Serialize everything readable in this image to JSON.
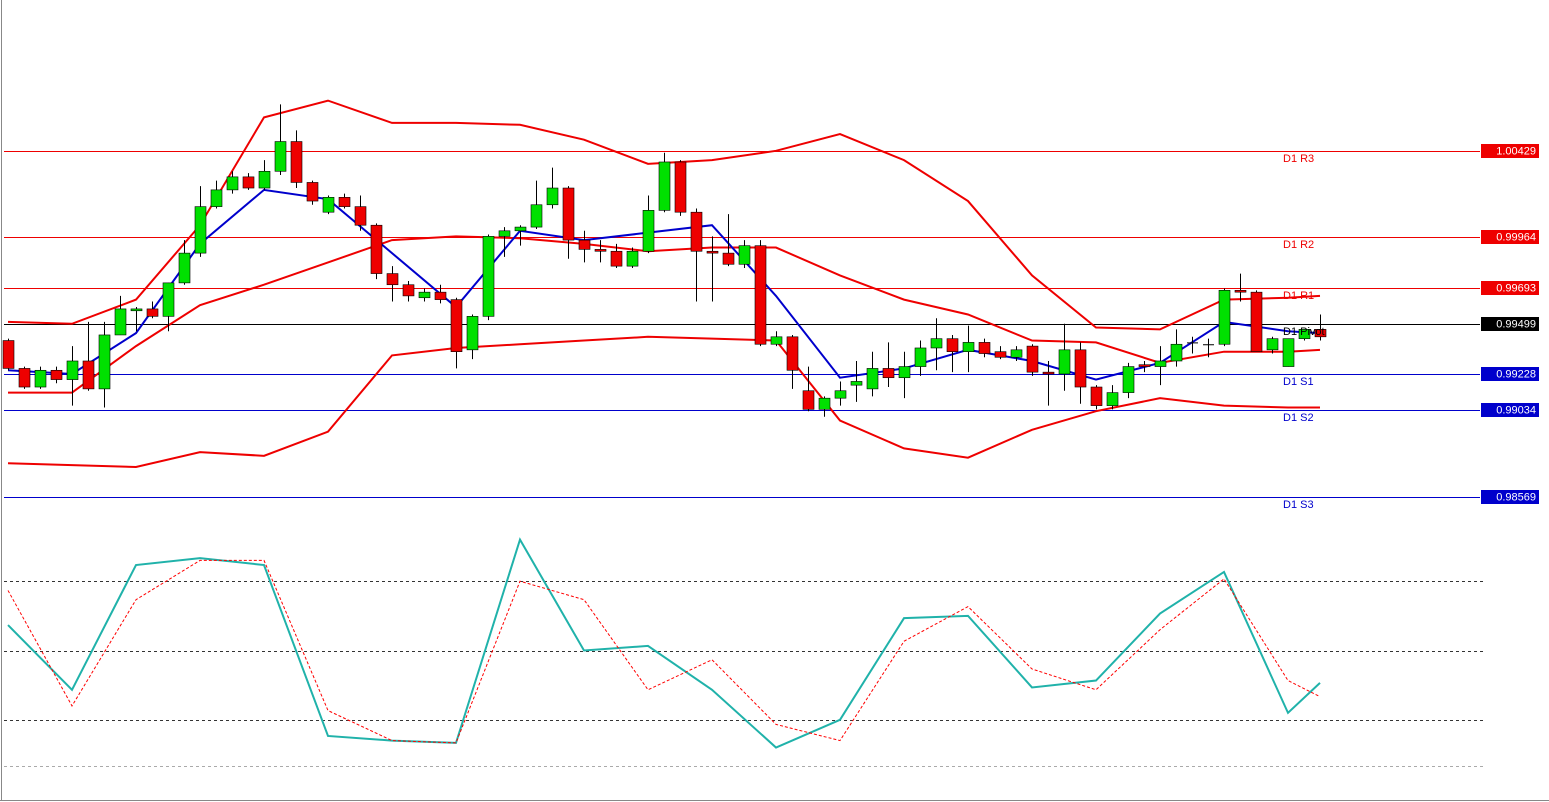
{
  "chart_data": [
    {
      "type": "candlestick",
      "xlim": [
        -0.5,
        92
      ],
      "ylim": [
        0.98445,
        1.01241
      ],
      "up_color": "#00e000",
      "down_color": "#ee0000",
      "open": [
        0.9941,
        0.9926,
        0.9916,
        0.9925,
        0.992,
        0.993,
        0.9915,
        0.9944,
        0.9957,
        0.9958,
        0.9954,
        0.9972,
        0.9988,
        1.0013,
        1.0022,
        1.0029,
        1.0023,
        1.0032,
        1.0048,
        1.0026,
        1.001,
        1.0018,
        1.0013,
        1.0003,
        0.9977,
        0.9971,
        0.9964,
        0.9967,
        0.9963,
        0.9936,
        0.9954,
        0.9997,
        1.0,
        1.0002,
        1.0014,
        1.0023,
        0.9995,
        0.999,
        0.9989,
        0.9981,
        0.9989,
        1.0011,
        1.0037,
        1.001,
        0.9989,
        0.9988,
        0.9982,
        0.9992,
        0.9939,
        0.9943,
        0.9914,
        0.9904,
        0.991,
        0.9917,
        0.9915,
        0.9926,
        0.9921,
        0.9927,
        0.9937,
        0.9942,
        0.9935,
        0.994,
        0.9935,
        0.9932,
        0.9938,
        0.9924,
        0.9923,
        0.9936,
        0.9916,
        0.9906,
        0.9913,
        0.9928,
        0.9927,
        0.993,
        0.994,
        0.9939,
        0.9939,
        0.9968,
        0.9967,
        0.9936,
        0.9927,
        0.9942,
        0.9947
      ],
      "high": [
        0.9942,
        0.9927,
        0.9927,
        0.9927,
        0.9938,
        0.9951,
        0.9951,
        0.9965,
        0.9959,
        0.9962,
        0.9972,
        0.9995,
        1.0024,
        1.0027,
        1.0032,
        1.0031,
        1.0038,
        1.0068,
        1.0054,
        1.0027,
        1.0019,
        1.002,
        1.0019,
        1.0004,
        0.9981,
        0.9973,
        0.9969,
        0.9971,
        0.9964,
        0.9955,
        0.9998,
        1.0002,
        1.0003,
        1.0027,
        1.0034,
        1.0024,
        1.0,
        0.9995,
        0.9993,
        0.9991,
        1.0019,
        1.0042,
        1.0038,
        1.0012,
        0.9997,
        1.0009,
        0.9995,
        0.9995,
        0.9946,
        0.9944,
        0.9927,
        0.9911,
        0.9919,
        0.993,
        0.9935,
        0.994,
        0.9935,
        0.9941,
        0.9953,
        0.9944,
        0.9949,
        0.9942,
        0.9938,
        0.9938,
        0.9939,
        0.993,
        0.995,
        0.994,
        0.9917,
        0.9917,
        0.9929,
        0.993,
        0.9938,
        0.9947,
        0.9943,
        0.9942,
        0.9969,
        0.9977,
        0.9968,
        0.9943,
        0.9942,
        0.9947,
        0.9955
      ],
      "low": [
        0.9925,
        0.9915,
        0.9915,
        0.9918,
        0.9906,
        0.9914,
        0.9905,
        0.9944,
        0.9946,
        0.9953,
        0.9946,
        0.9971,
        0.9986,
        1.0012,
        1.002,
        1.0022,
        1.0022,
        1.003,
        1.0023,
        1.0014,
        1.0009,
        1.0012,
        1.0,
        0.9974,
        0.9962,
        0.9962,
        0.9962,
        0.9961,
        0.9926,
        0.9931,
        0.9952,
        0.9986,
        0.9992,
        1.0001,
        1.0012,
        0.9985,
        0.9983,
        0.9983,
        0.998,
        0.998,
        0.9988,
        1.001,
        1.0008,
        0.9962,
        0.9962,
        0.9981,
        0.998,
        0.9938,
        0.9938,
        0.9915,
        0.9903,
        0.99,
        0.9906,
        0.9908,
        0.9911,
        0.9916,
        0.991,
        0.9922,
        0.9925,
        0.9924,
        0.9924,
        0.9932,
        0.9931,
        0.993,
        0.9922,
        0.9906,
        0.9914,
        0.9907,
        0.9904,
        0.9904,
        0.991,
        0.9924,
        0.9917,
        0.9927,
        0.9934,
        0.9932,
        0.9938,
        0.9962,
        0.9935,
        0.9934,
        0.9927,
        0.9941,
        0.9941
      ],
      "close": [
        0.9926,
        0.9916,
        0.9925,
        0.992,
        0.993,
        0.9915,
        0.9944,
        0.9958,
        0.9958,
        0.9954,
        0.9972,
        0.9988,
        1.0013,
        1.0022,
        1.0029,
        1.0023,
        1.0032,
        1.0048,
        1.0026,
        1.0016,
        1.0018,
        1.0013,
        1.0003,
        0.9977,
        0.9971,
        0.9965,
        0.9967,
        0.9963,
        0.9935,
        0.9954,
        0.9997,
        1.0,
        1.0002,
        1.0014,
        1.0023,
        0.9995,
        0.999,
        0.9989,
        0.9981,
        0.9989,
        1.0011,
        1.0037,
        1.001,
        0.9989,
        0.9988,
        0.9982,
        0.9992,
        0.9939,
        0.9943,
        0.9925,
        0.9904,
        0.991,
        0.9914,
        0.9919,
        0.9926,
        0.9921,
        0.9927,
        0.9937,
        0.9942,
        0.9935,
        0.994,
        0.9934,
        0.9932,
        0.9936,
        0.9924,
        0.9923,
        0.9936,
        0.9916,
        0.9906,
        0.9913,
        0.9927,
        0.9927,
        0.993,
        0.9939,
        0.994,
        0.9939,
        0.9968,
        0.9967,
        0.9935,
        0.9942,
        0.9942,
        0.9947,
        0.9943
      ],
      "overlays": [
        {
          "color": "#ee0000",
          "x": [
            0,
            4,
            8,
            12,
            16,
            20,
            24,
            28,
            32,
            36,
            40,
            44,
            48,
            52,
            56,
            60,
            64,
            68,
            72,
            76,
            80,
            82
          ],
          "values": [
            0.9951,
            0.995,
            0.9963,
            1.0003,
            1.0061,
            1.007,
            1.0058,
            1.0058,
            1.0057,
            1.0049,
            1.0036,
            1.0038,
            1.0043,
            1.0052,
            1.0038,
            1.0016,
            0.9976,
            0.9948,
            0.9947,
            0.9963,
            0.9964,
            0.9965
          ]
        },
        {
          "color": "#ee0000",
          "x": [
            0,
            4,
            8,
            12,
            16,
            20,
            24,
            28,
            32,
            36,
            40,
            44,
            48,
            52,
            56,
            60,
            64,
            68,
            72,
            76,
            80,
            82
          ],
          "values": [
            0.9913,
            0.9913,
            0.9938,
            0.996,
            0.9971,
            0.9983,
            0.9995,
            0.9997,
            0.9996,
            0.9993,
            0.9989,
            0.9991,
            0.9991,
            0.9976,
            0.9963,
            0.9955,
            0.9941,
            0.994,
            0.9929,
            0.9935,
            0.9935,
            0.9936
          ]
        },
        {
          "color": "#ee0000",
          "x": [
            0,
            4,
            8,
            12,
            16,
            20,
            24,
            28,
            32,
            36,
            40,
            44,
            48,
            52,
            56,
            60,
            64,
            68,
            72,
            76,
            80,
            82
          ],
          "values": [
            0.9875,
            0.9874,
            0.9873,
            0.9881,
            0.9879,
            0.9892,
            0.9933,
            0.9937,
            0.9939,
            0.9941,
            0.9943,
            0.9942,
            0.9941,
            0.9898,
            0.9883,
            0.9878,
            0.9893,
            0.9903,
            0.991,
            0.9906,
            0.9905,
            0.9905
          ]
        },
        {
          "color": "#0000cc",
          "x": [
            0,
            4,
            8,
            12,
            16,
            20,
            24,
            28,
            32,
            36,
            40,
            44,
            48,
            52,
            56,
            60,
            64,
            68,
            72,
            76,
            80,
            82
          ],
          "values": [
            0.9925,
            0.9923,
            0.9945,
            0.9993,
            1.0022,
            1.0017,
            0.9988,
            0.9959,
            1.0,
            0.9995,
            0.9999,
            1.0003,
            0.9965,
            0.9921,
            0.9926,
            0.9936,
            0.993,
            0.992,
            0.9929,
            0.9951,
            0.9946,
            0.9945
          ]
        }
      ],
      "levels": [
        {
          "name": "D1 R3",
          "value": 1.00429,
          "color": "#ee0000"
        },
        {
          "name": "D1 R2",
          "value": 0.99964,
          "color": "#ee0000"
        },
        {
          "name": "D1 R1",
          "value": 0.99693,
          "color": "#ee0000"
        },
        {
          "name": "D1 Pivot",
          "value": 0.99499,
          "color": "#000000"
        },
        {
          "name": "D1 S1",
          "value": 0.99228,
          "color": "#0000cc"
        },
        {
          "name": "D1 S2",
          "value": 0.99034,
          "color": "#0000cc"
        },
        {
          "name": "D1 S3",
          "value": 0.98569,
          "color": "#0000cc"
        }
      ]
    },
    {
      "type": "line",
      "xlim": [
        -0.5,
        92
      ],
      "ylim": [
        0,
        100
      ],
      "levels": [
        80,
        50,
        20,
        0
      ],
      "x": [
        0,
        4,
        8,
        12,
        16,
        20,
        24,
        28,
        32,
        36,
        40,
        44,
        48,
        52,
        56,
        60,
        64,
        68,
        72,
        76,
        80,
        82
      ],
      "series": [
        {
          "color": "#20b2aa",
          "values": [
            61,
            33,
            87,
            90,
            87,
            13,
            11,
            10,
            98,
            50,
            52,
            33,
            8,
            20,
            64,
            65,
            34,
            37,
            66,
            84,
            23,
            36
          ]
        },
        {
          "color": "#ff0000",
          "dashed": true,
          "values": [
            76,
            26,
            72,
            89,
            89,
            24,
            11,
            10,
            80,
            72,
            33,
            46,
            18,
            11,
            54,
            69,
            42,
            33,
            59,
            81,
            37,
            30
          ]
        }
      ]
    }
  ]
}
